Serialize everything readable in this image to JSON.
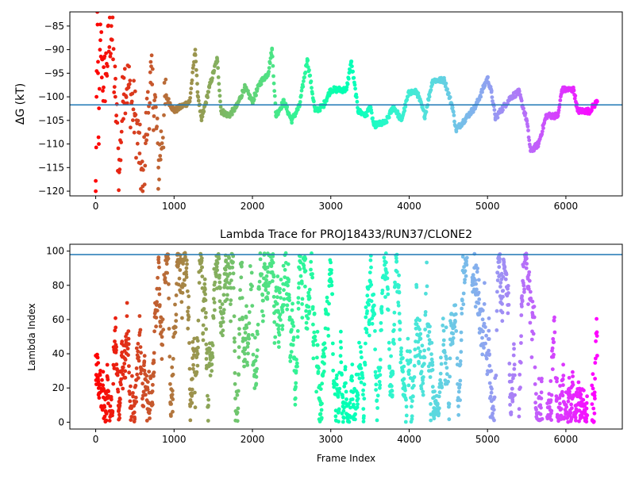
{
  "chart_data": [
    {
      "type": "scatter",
      "title": "",
      "xlabel": "",
      "ylabel": "ΔG (kT)",
      "xlim": [
        -330,
        6720
      ],
      "ylim": [
        -121,
        -82
      ],
      "xticks": [
        0,
        1000,
        2000,
        3000,
        4000,
        5000,
        6000
      ],
      "yticks": [
        -120,
        -115,
        -110,
        -105,
        -100,
        -95,
        -90,
        -85
      ],
      "hline": -101.7,
      "colormap": "rainbow (reversed: red at frame 0 → violet at last frame)",
      "x_range": [
        0,
        6400
      ],
      "series": [
        {
          "values_approx": [
            [
              0,
              -120
            ],
            [
              10,
              -100
            ],
            [
              20,
              -82
            ],
            [
              30,
              -95
            ],
            [
              40,
              -110
            ],
            [
              60,
              -88
            ],
            [
              80,
              -92
            ],
            [
              100,
              -98
            ],
            [
              140,
              -93
            ],
            [
              200,
              -85
            ],
            [
              250,
              -100
            ],
            [
              300,
              -116
            ],
            [
              360,
              -96
            ],
            [
              420,
              -98
            ],
            [
              500,
              -104
            ],
            [
              560,
              -112
            ],
            [
              600,
              -120
            ],
            [
              640,
              -108
            ],
            [
              700,
              -97
            ],
            [
              760,
              -102
            ],
            [
              800,
              -115
            ],
            [
              900,
              -100
            ],
            [
              1000,
              -103
            ],
            [
              1100,
              -102
            ],
            [
              1200,
              -101
            ],
            [
              1270,
              -90
            ],
            [
              1300,
              -99
            ],
            [
              1350,
              -105
            ],
            [
              1450,
              -98
            ],
            [
              1550,
              -92
            ],
            [
              1600,
              -103
            ],
            [
              1700,
              -104
            ],
            [
              1800,
              -102
            ],
            [
              1900,
              -98
            ],
            [
              2000,
              -101
            ],
            [
              2100,
              -97
            ],
            [
              2200,
              -95
            ],
            [
              2250,
              -90
            ],
            [
              2300,
              -104
            ],
            [
              2400,
              -101
            ],
            [
              2500,
              -105
            ],
            [
              2600,
              -102
            ],
            [
              2700,
              -92
            ],
            [
              2800,
              -103
            ],
            [
              2900,
              -102
            ],
            [
              3000,
              -98.5
            ],
            [
              3200,
              -98.5
            ],
            [
              3260,
              -92.5
            ],
            [
              3350,
              -103
            ],
            [
              3450,
              -104
            ],
            [
              3500,
              -102
            ],
            [
              3550,
              -106
            ],
            [
              3700,
              -105.5
            ],
            [
              3800,
              -102
            ],
            [
              3900,
              -105
            ],
            [
              4000,
              -99
            ],
            [
              4100,
              -99
            ],
            [
              4200,
              -104
            ],
            [
              4300,
              -96.5
            ],
            [
              4450,
              -96.5
            ],
            [
              4550,
              -102
            ],
            [
              4600,
              -107
            ],
            [
              4700,
              -105
            ],
            [
              4850,
              -102
            ],
            [
              5000,
              -96
            ],
            [
              5050,
              -99
            ],
            [
              5100,
              -104.5
            ],
            [
              5300,
              -100
            ],
            [
              5400,
              -99
            ],
            [
              5500,
              -105
            ],
            [
              5550,
              -111.5
            ],
            [
              5650,
              -110
            ],
            [
              5750,
              -104
            ],
            [
              5900,
              -104
            ],
            [
              5950,
              -98.5
            ],
            [
              6100,
              -98.5
            ],
            [
              6150,
              -103
            ],
            [
              6300,
              -103
            ],
            [
              6400,
              -101
            ]
          ]
        }
      ]
    },
    {
      "type": "scatter",
      "title": "Lambda Trace for PROJ18433/RUN37/CLONE2",
      "xlabel": "Frame Index",
      "ylabel": "Lambda Index",
      "xlim": [
        -330,
        6720
      ],
      "ylim": [
        -4,
        104
      ],
      "xticks": [
        0,
        1000,
        2000,
        3000,
        4000,
        5000,
        6000
      ],
      "yticks": [
        0,
        20,
        40,
        60,
        80,
        100
      ],
      "hline": 98,
      "colormap": "rainbow (reversed: red at frame 0 → violet at last frame)",
      "x_range": [
        0,
        6400
      ],
      "value_range": [
        0,
        99
      ],
      "visible_gaps_x": [
        [
          4740,
          4800
        ],
        [
          5350,
          5400
        ],
        [
          5700,
          5760
        ],
        [
          6280,
          6330
        ]
      ]
    }
  ],
  "colors": {
    "hline": "#1f77b4",
    "axis": "#000000"
  }
}
